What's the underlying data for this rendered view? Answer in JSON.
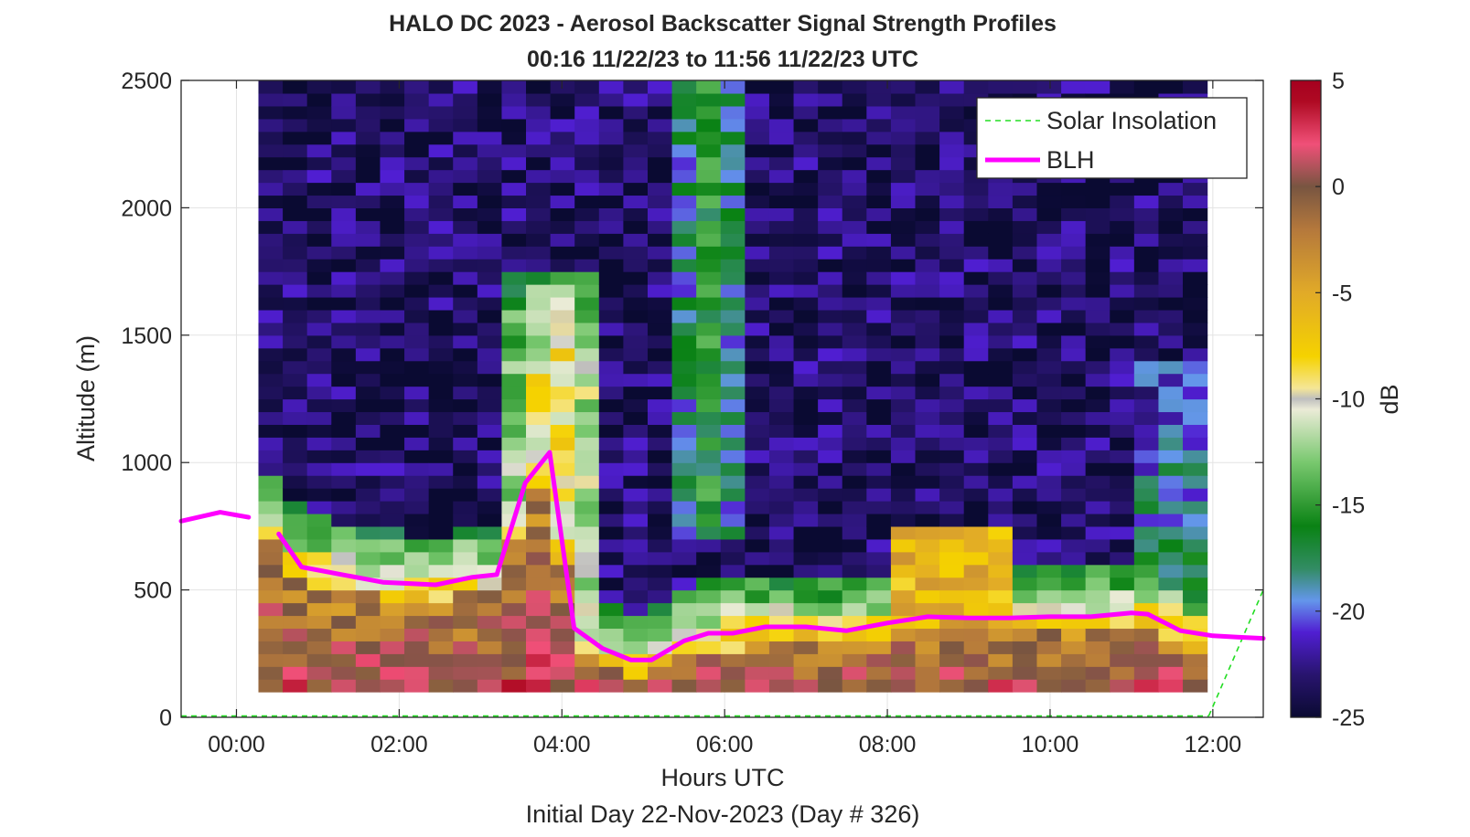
{
  "chart_data": {
    "type": "heatmap",
    "title": "HALO DC 2023 - Aerosol Backscatter Signal Strength Profiles",
    "subtitle": "00:16 11/22/23 to 11:56 11/22/23  UTC",
    "xlabel": "Hours UTC",
    "ylabel": "Altitude (m)",
    "footer": "Initial Day 22-Nov-2023 (Day # 326)",
    "xlim_hours": [
      -0.68,
      12.62
    ],
    "ylim": [
      0,
      2500
    ],
    "x_tick_values": [
      0,
      2,
      4,
      6,
      8,
      10,
      12
    ],
    "x_tick_labels": [
      "00:00",
      "02:00",
      "04:00",
      "06:00",
      "08:00",
      "10:00",
      "12:00"
    ],
    "y_tick_values": [
      0,
      500,
      1000,
      1500,
      2000,
      2500
    ],
    "y_tick_labels": [
      "0",
      "500",
      "1000",
      "1500",
      "2000",
      "2500"
    ],
    "grid": true,
    "colorbar": {
      "label": "dB",
      "range": [
        -25,
        5
      ],
      "tick_values": [
        5,
        0,
        -5,
        -10,
        -15,
        -20,
        -25
      ],
      "tick_labels": [
        "5",
        "0",
        "-5",
        "-10",
        "-15",
        "-20",
        "-25"
      ]
    },
    "legend": {
      "position": "top-right",
      "entries": [
        {
          "name": "Solar Insolation",
          "color": "#22dd22",
          "style": "dashed"
        },
        {
          "name": "BLH",
          "color": "#ff00ff",
          "style": "solid"
        }
      ]
    },
    "heatmap": {
      "x_start_hours": 0.27,
      "x_end_hours": 11.93,
      "column_count": 39,
      "y_start_m": 100,
      "y_end_m": 2500,
      "row_height_m": 50,
      "value_units": "dB"
    },
    "blh_series": {
      "name": "BLH",
      "segments": [
        {
          "x": [
            -0.68,
            -0.2,
            0.15
          ],
          "y": [
            770,
            805,
            785
          ]
        },
        {
          "x": [
            0.52,
            0.8,
            1.3,
            1.8,
            2.45,
            2.9,
            3.2,
            3.55,
            3.85,
            4.15,
            4.5,
            4.85,
            5.1,
            5.5,
            5.8,
            6.1,
            6.5,
            7.0,
            7.5,
            8.0,
            8.5,
            9.0,
            9.5,
            10.0,
            10.5,
            11.0,
            11.2,
            11.6,
            12.0,
            12.3,
            12.62
          ],
          "y": [
            720,
            590,
            560,
            530,
            520,
            550,
            560,
            920,
            1040,
            350,
            270,
            225,
            225,
            300,
            330,
            330,
            355,
            355,
            340,
            370,
            395,
            390,
            390,
            395,
            395,
            410,
            405,
            340,
            320,
            315,
            310
          ]
        }
      ]
    },
    "solar_series": {
      "name": "Solar Insolation",
      "segments": [
        {
          "x": [
            -0.68,
            11.95
          ],
          "y": [
            5,
            5
          ]
        },
        {
          "x": [
            11.95,
            12.62
          ],
          "y": [
            5,
            500
          ]
        }
      ]
    }
  }
}
